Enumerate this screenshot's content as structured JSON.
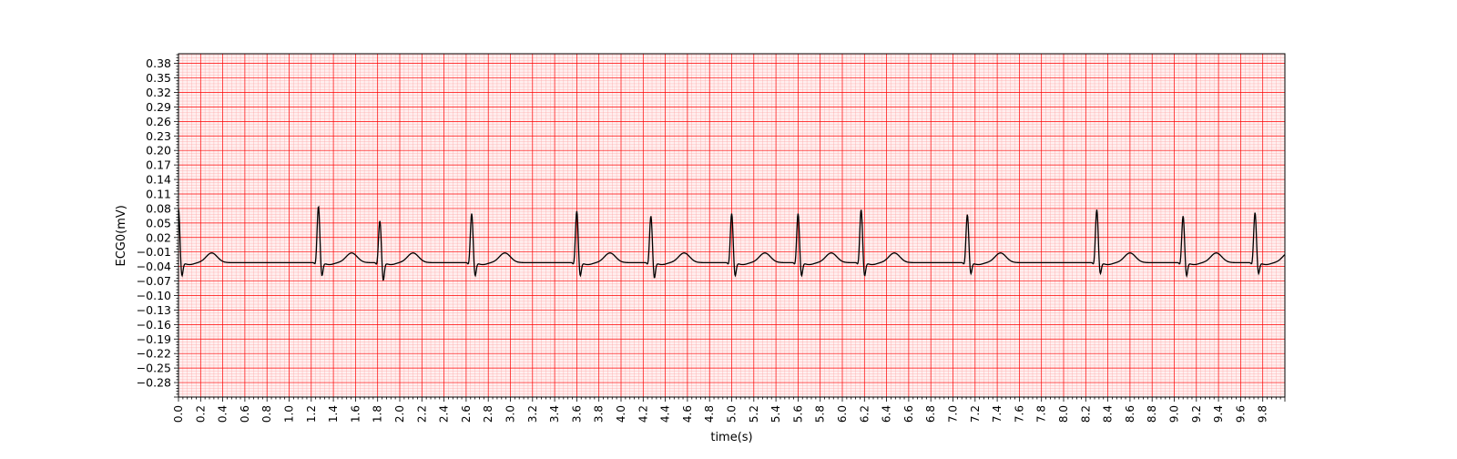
{
  "chart_data": {
    "type": "line",
    "title": "",
    "xlabel": "time(s)",
    "ylabel": "ECG0(mV)",
    "xlim": [
      0,
      10
    ],
    "ylim": [
      -0.31,
      0.4
    ],
    "x_ticks": [
      "0.0",
      "0.2",
      "0.4",
      "0.6",
      "0.8",
      "1.0",
      "1.2",
      "1.4",
      "1.6",
      "1.8",
      "2.0",
      "2.2",
      "2.4",
      "2.6",
      "2.8",
      "3.0",
      "3.2",
      "3.4",
      "3.6",
      "3.8",
      "4.0",
      "4.2",
      "4.4",
      "4.6",
      "4.8",
      "5.0",
      "5.2",
      "5.4",
      "5.6",
      "5.8",
      "6.0",
      "6.2",
      "6.4",
      "6.6",
      "6.8",
      "7.0",
      "7.2",
      "7.4",
      "7.6",
      "7.8",
      "8.0",
      "8.2",
      "8.4",
      "8.6",
      "8.8",
      "9.0",
      "9.2",
      "9.4",
      "9.6",
      "9.8"
    ],
    "y_ticks": [
      "0.38",
      "0.35",
      "0.32",
      "0.29",
      "0.26",
      "0.23",
      "0.20",
      "0.17",
      "0.14",
      "0.11",
      "0.08",
      "0.05",
      "0.02",
      "−0.01",
      "−0.04",
      "−0.07",
      "−0.10",
      "−0.13",
      "−0.16",
      "−0.19",
      "−0.22",
      "−0.25",
      "−0.28"
    ],
    "grid": "ecg-paper",
    "colors": {
      "trace": "#000000",
      "major_grid": "#ff0000",
      "minor_grid": "#ffa0a0",
      "paper": "#fff0f0"
    },
    "series": [
      {
        "beats": [
          {
            "t": 0.0,
            "r": 0.08,
            "s": -0.065
          },
          {
            "t": 1.265,
            "r": 0.085,
            "s": -0.065
          },
          {
            "t": 1.82,
            "r": 0.055,
            "s": -0.075
          },
          {
            "t": 2.65,
            "r": 0.07,
            "s": -0.065
          },
          {
            "t": 3.6,
            "r": 0.075,
            "s": -0.065
          },
          {
            "t": 4.27,
            "r": 0.065,
            "s": -0.07
          },
          {
            "t": 5.0,
            "r": 0.07,
            "s": -0.065
          },
          {
            "t": 5.6,
            "r": 0.07,
            "s": -0.065
          },
          {
            "t": 6.17,
            "r": 0.078,
            "s": -0.065
          },
          {
            "t": 7.13,
            "r": 0.068,
            "s": -0.06
          },
          {
            "t": 8.3,
            "r": 0.078,
            "s": -0.06
          },
          {
            "t": 9.08,
            "r": 0.065,
            "s": -0.065
          },
          {
            "t": 9.73,
            "r": 0.072,
            "s": -0.06
          }
        ],
        "baseline": -0.032,
        "t_wave_peak": -0.012
      }
    ]
  }
}
